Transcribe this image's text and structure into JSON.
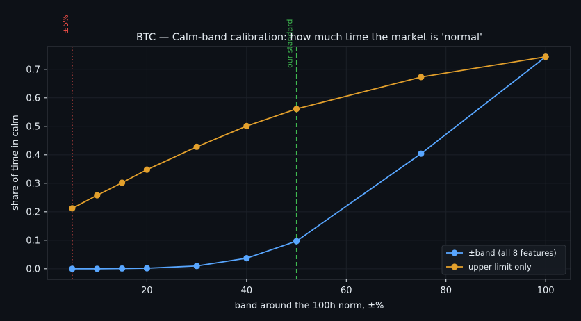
{
  "colors": {
    "background": "#0d1117",
    "plot_background": "#0d1117",
    "axes_edge": "#3a3f47",
    "grid": "#1c2128",
    "text": "#e6edf3",
    "series_band": "#58a6ff",
    "series_upper": "#e3a02c",
    "line_5pct": "#f85149",
    "line_standard": "#3fb950"
  },
  "chart_data": {
    "type": "line",
    "title": "BTC — Calm-band calibration: how much time the market is 'normal'",
    "xlabel": "band around the 100h norm, ±%",
    "ylabel": "share of time in calm",
    "xlim": [
      0,
      105
    ],
    "ylim": [
      -0.037,
      0.78
    ],
    "xticks": [
      20,
      40,
      60,
      80,
      100
    ],
    "xtick_labels": [
      "20",
      "40",
      "60",
      "80",
      "100"
    ],
    "yticks": [
      0.0,
      0.1,
      0.2,
      0.3,
      0.4,
      0.5,
      0.6,
      0.7
    ],
    "ytick_labels": [
      "0.0",
      "0.1",
      "0.2",
      "0.3",
      "0.4",
      "0.5",
      "0.6",
      "0.7"
    ],
    "grid": true,
    "legend_position": "bottom-right",
    "x": [
      5,
      10,
      15,
      20,
      30,
      40,
      50,
      75,
      100
    ],
    "series": [
      {
        "name": "±band (all 8 features)",
        "color": "#58a6ff",
        "values": [
          0.0,
          0.0,
          0.001,
          0.002,
          0.01,
          0.037,
          0.097,
          0.404,
          0.744
        ]
      },
      {
        "name": "upper limit only",
        "color": "#e3a02c",
        "values": [
          0.212,
          0.258,
          0.302,
          0.348,
          0.428,
          0.501,
          0.561,
          0.673,
          0.744
        ]
      }
    ],
    "reference_lines": [
      {
        "x": 5,
        "label": "±5%",
        "color": "#f85149",
        "style": "dotted"
      },
      {
        "x": 50,
        "label": "our standard",
        "color": "#3fb950",
        "style": "dashed"
      }
    ]
  }
}
